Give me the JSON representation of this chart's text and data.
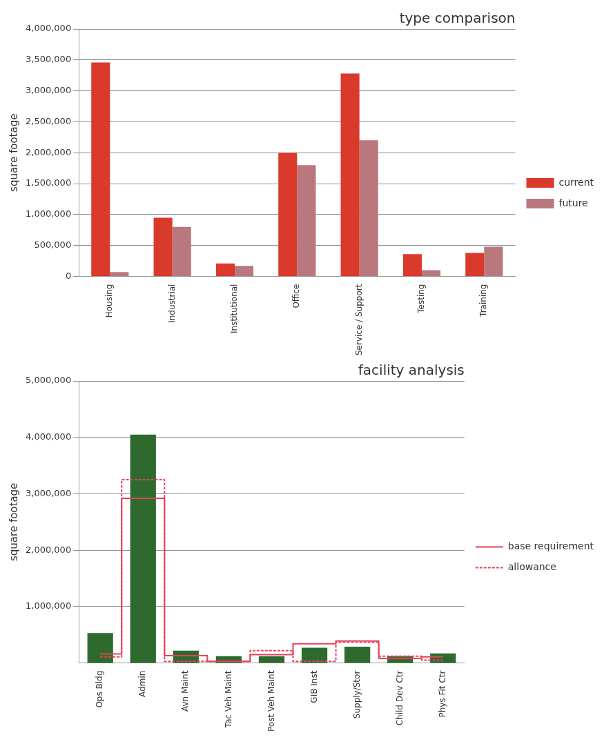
{
  "chart_data": [
    {
      "type": "bar",
      "title": "type comparison",
      "ylabel": "square footage",
      "categories": [
        "Housing",
        "Industrial",
        "Institutional",
        "Office",
        "Service / Support",
        "Testing",
        "Training"
      ],
      "series": [
        {
          "name": "current",
          "color": "#d93a2b",
          "values": [
            3460000,
            950000,
            210000,
            2000000,
            3280000,
            360000,
            380000
          ]
        },
        {
          "name": "future",
          "color": "#b9787e",
          "values": [
            70000,
            800000,
            170000,
            1800000,
            2200000,
            100000,
            480000
          ]
        }
      ],
      "ylim": [
        0,
        4000000
      ],
      "yticks": [
        {
          "value": 0,
          "label": "0"
        },
        {
          "value": 500000,
          "label": "500,000"
        },
        {
          "value": 1000000,
          "label": "1,000,000"
        },
        {
          "value": 1500000,
          "label": "1,500,000"
        },
        {
          "value": 2000000,
          "label": "2,000,000"
        },
        {
          "value": 2500000,
          "label": "2,500,000"
        },
        {
          "value": 3000000,
          "label": "3,000,000"
        },
        {
          "value": 3500000,
          "label": "3,500,000"
        },
        {
          "value": 4000000,
          "label": "4,000,000"
        }
      ],
      "grid": "y",
      "legend": "right"
    },
    {
      "type": "bar",
      "title": "facility analysis",
      "ylabel": "square footage",
      "categories": [
        "Ops Bldg",
        "Admin",
        "Avn Maint",
        "Tac Veh Maint",
        "Post Veh Maint",
        "GIB Inst",
        "Supply/Stor",
        "Child Dev Ctr",
        "Phys Fit Ctr"
      ],
      "series": [
        {
          "type": "bar",
          "color": "#2e6a2e",
          "values": [
            530000,
            4050000,
            220000,
            120000,
            120000,
            270000,
            290000,
            120000,
            170000
          ]
        },
        {
          "type": "step",
          "name": "base requirement",
          "color": "#e8415a",
          "line_style": "solid",
          "values": [
            160000,
            2920000,
            130000,
            30000,
            150000,
            340000,
            390000,
            80000,
            110000
          ]
        },
        {
          "type": "step",
          "name": "allowance",
          "color": "#e8415a",
          "line_style": "dashed",
          "values": [
            110000,
            3250000,
            30000,
            30000,
            220000,
            30000,
            370000,
            120000,
            50000
          ]
        }
      ],
      "ylim": [
        0,
        5000000
      ],
      "yticks": [
        {
          "value": 1000000,
          "label": "1,000,000"
        },
        {
          "value": 2000000,
          "label": "2,000,000"
        },
        {
          "value": 3000000,
          "label": "3,000,000"
        },
        {
          "value": 4000000,
          "label": "4,000,000"
        },
        {
          "value": 5000000,
          "label": "5,000,000"
        }
      ],
      "grid": "y",
      "legend": "right"
    }
  ]
}
